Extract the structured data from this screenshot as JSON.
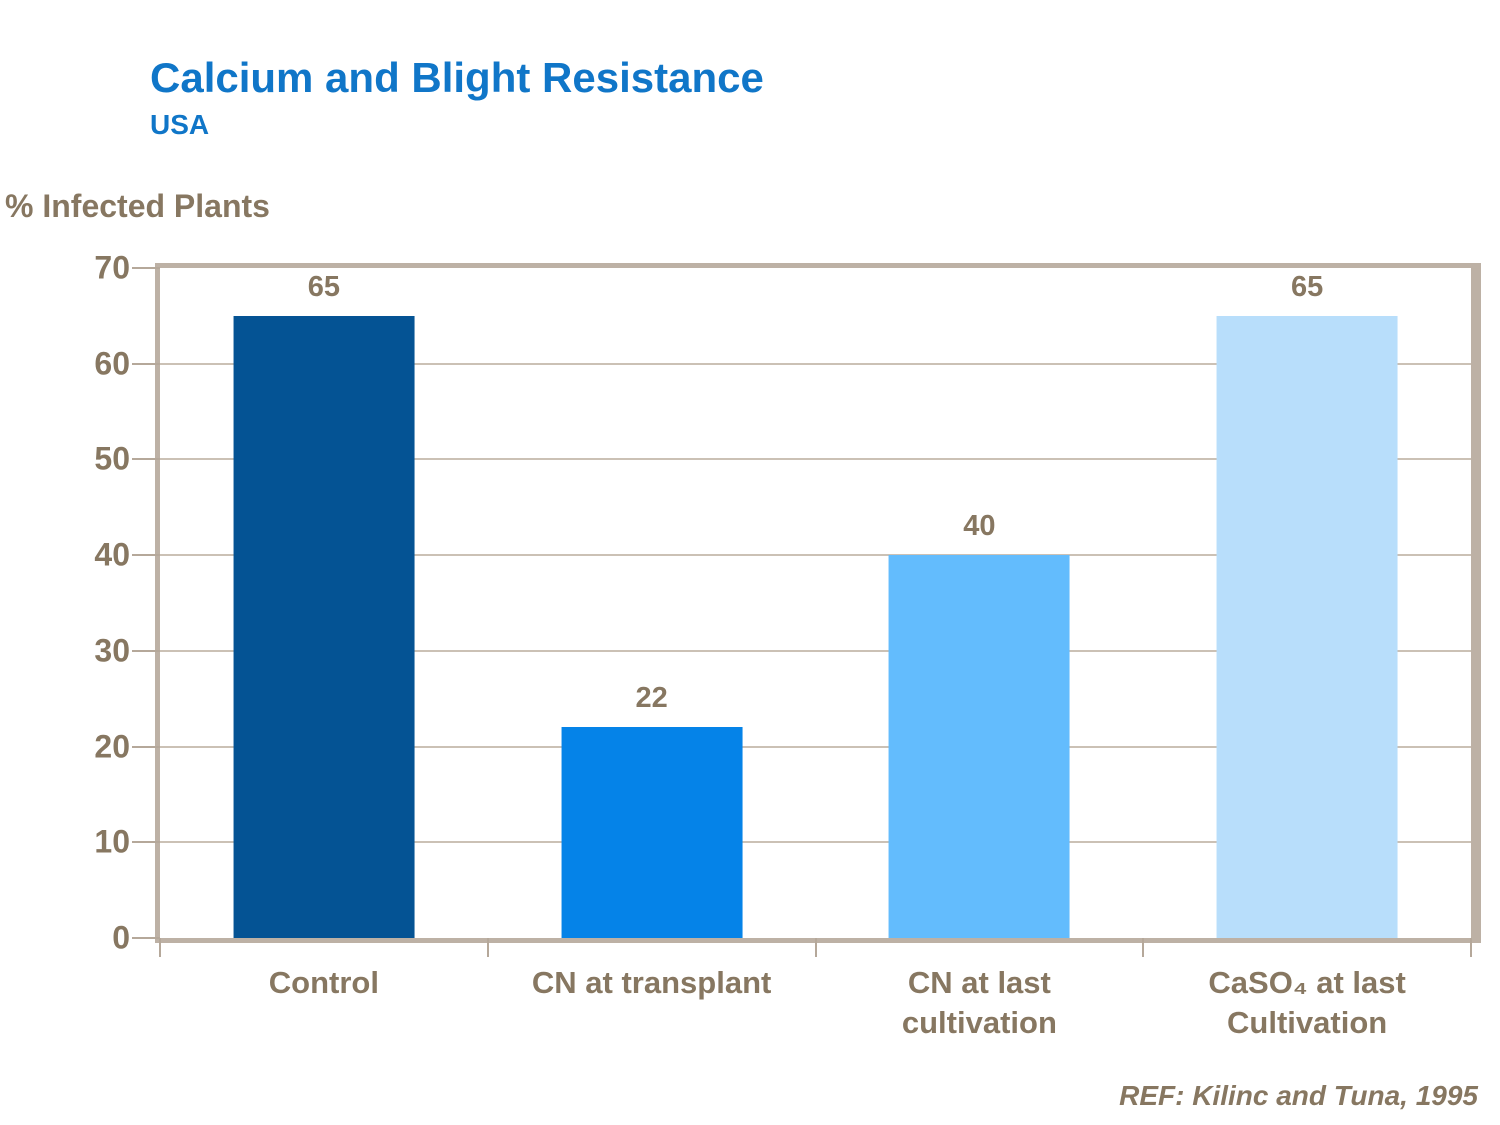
{
  "slide": {
    "title": "Calcium and Blight Resistance",
    "subtitle": "USA",
    "reference": "REF: Kilinc and Tuna, 1995"
  },
  "chart_data": {
    "type": "bar",
    "title": "Calcium and Blight Resistance",
    "subtitle": "USA",
    "ylabel": "% Infected Plants",
    "xlabel": "",
    "categories": [
      "Control",
      "CN at transplant",
      "CN at last\ncultivation",
      "CaSO₄ at last\nCultivation"
    ],
    "values": [
      65,
      22,
      40,
      65
    ],
    "value_labels": [
      "65",
      "22",
      "40",
      "65"
    ],
    "bar_colors": [
      "#045394",
      "#0583E8",
      "#63BCFD",
      "#B8DEFB"
    ],
    "ylim": [
      0,
      70
    ],
    "yticks": [
      0,
      10,
      20,
      30,
      40,
      50,
      60,
      70
    ],
    "grid": true,
    "legend_position": "none",
    "reference": "REF: Kilinc and Tuna, 1995"
  },
  "colors": {
    "title_blue": "#1076C8",
    "text_brown": "#877761",
    "axis_tan": "#B5A89A",
    "plot_border": "#BDB1A5",
    "gridline": "#CBC1B5",
    "background": "#FFFFFF"
  }
}
